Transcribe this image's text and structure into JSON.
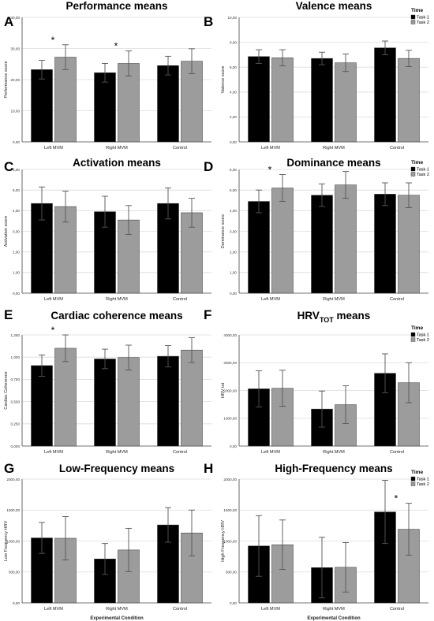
{
  "figure": {
    "legend_title": "Time",
    "legend_labels": [
      "Task 1",
      "Task 2"
    ],
    "colors": {
      "task1": "#000000",
      "task2": "#9c9c9c",
      "grid": "#dcdcdc",
      "axis": "#444444",
      "error": "#555555"
    },
    "x_categories": [
      "Left MVM",
      "Right MVM",
      "Control"
    ],
    "x_axis_title": "Experimental Condition"
  },
  "chart_data": [
    {
      "type": "bar",
      "panel": "A",
      "title": "Performance means",
      "ylabel": "Performance score",
      "ylim": [
        0,
        40
      ],
      "yticks": [
        "0,00",
        "10,00",
        "20,00",
        "30,00",
        "40,00"
      ],
      "legend": false,
      "categories": [
        "Left MVM",
        "Right MVM",
        "Control"
      ],
      "series": [
        {
          "name": "Task 1",
          "values": [
            23.2,
            22.2,
            24.5
          ],
          "errors": [
            3.0,
            3.0,
            3.0
          ]
        },
        {
          "name": "Task 2",
          "values": [
            27.2,
            25.2,
            25.9
          ],
          "errors": [
            4.0,
            4.0,
            4.0
          ]
        }
      ],
      "stars": [
        0,
        1
      ]
    },
    {
      "type": "bar",
      "panel": "B",
      "title": "Valence means",
      "ylabel": "Valence score",
      "ylim": [
        0,
        10
      ],
      "yticks": [
        "0,00",
        "2,00",
        "4,00",
        "6,00",
        "8,00",
        "10,00"
      ],
      "legend": true,
      "categories": [
        "Left MVM",
        "Right MVM",
        "Control"
      ],
      "series": [
        {
          "name": "Task 1",
          "values": [
            6.85,
            6.7,
            7.55
          ],
          "errors": [
            0.55,
            0.5,
            0.55
          ]
        },
        {
          "name": "Task 2",
          "values": [
            6.75,
            6.35,
            6.7
          ],
          "errors": [
            0.65,
            0.7,
            0.65
          ]
        }
      ],
      "stars": []
    },
    {
      "type": "bar",
      "panel": "C",
      "title": "Activation means",
      "ylabel": "Activation score",
      "ylim": [
        0,
        6
      ],
      "yticks": [
        "0,00",
        "1,00",
        "2,00",
        "3,00",
        "4,00",
        "5,00",
        "6,00"
      ],
      "legend": false,
      "categories": [
        "Left MVM",
        "Right MVM",
        "Control"
      ],
      "series": [
        {
          "name": "Task 1",
          "values": [
            4.35,
            3.95,
            4.35
          ],
          "errors": [
            0.8,
            0.75,
            0.75
          ]
        },
        {
          "name": "Task 2",
          "values": [
            4.2,
            3.55,
            3.9
          ],
          "errors": [
            0.75,
            0.7,
            0.7
          ]
        }
      ],
      "stars": []
    },
    {
      "type": "bar",
      "panel": "D",
      "title": "Dominance means",
      "ylabel": "Dominance score",
      "ylim": [
        0,
        6
      ],
      "yticks": [
        "0,00",
        "1,00",
        "2,00",
        "3,00",
        "4,00",
        "5,00",
        "6,00"
      ],
      "legend": true,
      "categories": [
        "Left MVM",
        "Right MVM",
        "Control"
      ],
      "series": [
        {
          "name": "Task 1",
          "values": [
            4.45,
            4.75,
            4.8
          ],
          "errors": [
            0.55,
            0.55,
            0.55
          ]
        },
        {
          "name": "Task 2",
          "values": [
            5.1,
            5.25,
            4.75
          ],
          "errors": [
            0.65,
            0.65,
            0.6
          ]
        }
      ],
      "stars": [
        0
      ]
    },
    {
      "type": "bar",
      "panel": "E",
      "title": "Cardiac coherence means",
      "ylabel": "Cardiac Coherence",
      "ylim": [
        0,
        1.25
      ],
      "yticks": [
        "0,000",
        "0,250",
        "0,500",
        "0,750",
        "1,000",
        "1,250"
      ],
      "legend": false,
      "categories": [
        "Left MVM",
        "Right MVM",
        "Control"
      ],
      "series": [
        {
          "name": "Task 1",
          "values": [
            0.905,
            0.98,
            1.01
          ],
          "errors": [
            0.12,
            0.11,
            0.12
          ]
        },
        {
          "name": "Task 2",
          "values": [
            1.1,
            0.995,
            1.08
          ],
          "errors": [
            0.15,
            0.14,
            0.14
          ]
        }
      ],
      "stars": [
        0
      ]
    },
    {
      "type": "bar",
      "panel": "F",
      "title": "HRV",
      "title_sub": "TOT",
      "title_tail": "means",
      "ylabel": "HRV tot",
      "ylim": [
        0,
        4000
      ],
      "yticks": [
        "0,00",
        "1000,00",
        "2000,00",
        "3000,00",
        "4000,00"
      ],
      "legend": true,
      "categories": [
        "Left MVM",
        "Right MVM",
        "Control"
      ],
      "series": [
        {
          "name": "Task 1",
          "values": [
            2060,
            1330,
            2620
          ],
          "errors": [
            650,
            650,
            700
          ]
        },
        {
          "name": "Task 2",
          "values": [
            2080,
            1490,
            2280
          ],
          "errors": [
            650,
            680,
            720
          ]
        }
      ],
      "stars": []
    },
    {
      "type": "bar",
      "panel": "G",
      "title": "Low-Frequency means",
      "ylabel": "Low Frequency HRV",
      "ylim": [
        0,
        2000
      ],
      "yticks": [
        "0,00",
        "500,00",
        "1000,00",
        "1500,00",
        "2000,00"
      ],
      "legend": false,
      "categories": [
        "Left MVM",
        "Right MVM",
        "Control"
      ],
      "series": [
        {
          "name": "Task 1",
          "values": [
            1050,
            710,
            1260
          ],
          "errors": [
            250,
            250,
            280
          ]
        },
        {
          "name": "Task 2",
          "values": [
            1045,
            855,
            1130
          ],
          "errors": [
            350,
            350,
            370
          ]
        }
      ],
      "stars": []
    },
    {
      "type": "bar",
      "panel": "H",
      "title": "High-Frequency means",
      "ylabel": "High Frequency HRV",
      "ylim": [
        0,
        2000
      ],
      "yticks": [
        "0,00",
        "500,00",
        "1000,00",
        "1500,00",
        "2000,00"
      ],
      "legend": true,
      "categories": [
        "Left MVM",
        "Right MVM",
        "Control"
      ],
      "series": [
        {
          "name": "Task 1",
          "values": [
            920,
            570,
            1470
          ],
          "errors": [
            490,
            490,
            510
          ]
        },
        {
          "name": "Task 2",
          "values": [
            940,
            575,
            1190
          ],
          "errors": [
            400,
            400,
            420
          ]
        }
      ],
      "stars": [
        2
      ]
    }
  ]
}
